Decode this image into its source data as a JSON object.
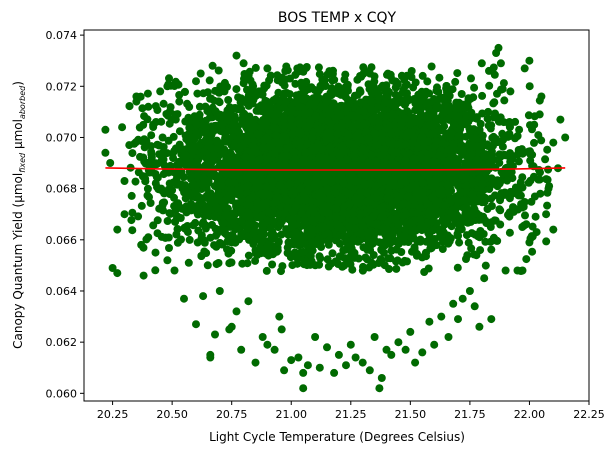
{
  "chart_data": {
    "type": "scatter",
    "title": "BOS TEMP x CQY",
    "xlabel": "Light Cycle Temperature (Degrees Celsius)",
    "ylabel": {
      "main": "Canopy Quantum Yield (µmol",
      "sub1": "fixed",
      "mid": " µmol",
      "sub2": "aborbed",
      "end": ")"
    },
    "xlim": [
      20.13,
      22.25
    ],
    "ylim": [
      0.0597,
      0.0742
    ],
    "x_ticks": [
      20.25,
      20.5,
      20.75,
      21.0,
      21.25,
      21.5,
      21.75,
      22.0,
      22.25
    ],
    "x_tick_labels": [
      "20.25",
      "20.50",
      "20.75",
      "21.00",
      "21.25",
      "21.50",
      "21.75",
      "22.00",
      "22.25"
    ],
    "y_ticks": [
      0.06,
      0.062,
      0.064,
      0.066,
      0.068,
      0.07,
      0.072,
      0.074
    ],
    "y_tick_labels": [
      "0.060",
      "0.062",
      "0.064",
      "0.066",
      "0.068",
      "0.070",
      "0.072",
      "0.074"
    ],
    "grid": false,
    "legend": "none",
    "colors": {
      "points": "#006a00",
      "fit_line": "#ff0000"
    },
    "series": [
      {
        "kind": "scatter",
        "points": [
          [
            20.22,
            0.0703
          ],
          [
            20.22,
            0.0694
          ],
          [
            20.24,
            0.069
          ],
          [
            20.25,
            0.0649
          ],
          [
            20.27,
            0.0647
          ],
          [
            20.27,
            0.0664
          ],
          [
            20.29,
            0.0704
          ],
          [
            20.3,
            0.0683
          ],
          [
            20.3,
            0.067
          ],
          [
            20.32,
            0.0697
          ],
          [
            20.35,
            0.0716
          ],
          [
            20.35,
            0.0714
          ],
          [
            20.37,
            0.0658
          ],
          [
            20.38,
            0.0646
          ],
          [
            20.4,
            0.0712
          ],
          [
            20.4,
            0.0661
          ],
          [
            20.42,
            0.0705
          ],
          [
            20.43,
            0.0655
          ],
          [
            20.45,
            0.0718
          ],
          [
            20.46,
            0.07
          ],
          [
            20.48,
            0.072
          ],
          [
            20.48,
            0.0652
          ],
          [
            20.51,
            0.0648
          ],
          [
            20.53,
            0.0714
          ],
          [
            20.55,
            0.0637
          ],
          [
            20.57,
            0.0651
          ],
          [
            20.58,
            0.07
          ],
          [
            20.6,
            0.0722
          ],
          [
            20.6,
            0.0627
          ],
          [
            20.62,
            0.0725
          ],
          [
            20.63,
            0.0638
          ],
          [
            20.66,
            0.0615
          ],
          [
            20.66,
            0.0614
          ],
          [
            20.67,
            0.0728
          ],
          [
            20.68,
            0.0623
          ],
          [
            20.7,
            0.064
          ],
          [
            20.72,
            0.0718
          ],
          [
            20.74,
            0.0625
          ],
          [
            20.75,
            0.0626
          ],
          [
            20.77,
            0.0732
          ],
          [
            20.77,
            0.0632
          ],
          [
            20.79,
            0.0617
          ],
          [
            20.8,
            0.0729
          ],
          [
            20.82,
            0.0636
          ],
          [
            20.84,
            0.072
          ],
          [
            20.85,
            0.0612
          ],
          [
            20.88,
            0.0622
          ],
          [
            20.9,
            0.0619
          ],
          [
            20.9,
            0.0727
          ],
          [
            20.93,
            0.0617
          ],
          [
            20.95,
            0.063
          ],
          [
            20.96,
            0.0625
          ],
          [
            20.97,
            0.0609
          ],
          [
            20.98,
            0.0727
          ],
          [
            21.0,
            0.0613
          ],
          [
            21.03,
            0.0614
          ],
          [
            21.05,
            0.0608
          ],
          [
            21.05,
            0.0602
          ],
          [
            21.07,
            0.0611
          ],
          [
            21.1,
            0.0622
          ],
          [
            21.12,
            0.061
          ],
          [
            21.15,
            0.0618
          ],
          [
            21.18,
            0.0608
          ],
          [
            21.2,
            0.0615
          ],
          [
            21.23,
            0.0611
          ],
          [
            21.25,
            0.0619
          ],
          [
            21.27,
            0.0614
          ],
          [
            21.3,
            0.0612
          ],
          [
            21.33,
            0.0609
          ],
          [
            21.35,
            0.0622
          ],
          [
            21.37,
            0.0602
          ],
          [
            21.38,
            0.0606
          ],
          [
            21.4,
            0.0617
          ],
          [
            21.42,
            0.0615
          ],
          [
            21.45,
            0.062
          ],
          [
            21.48,
            0.0617
          ],
          [
            21.5,
            0.0624
          ],
          [
            21.52,
            0.0612
          ],
          [
            21.55,
            0.0616
          ],
          [
            21.58,
            0.0628
          ],
          [
            21.6,
            0.0619
          ],
          [
            21.63,
            0.063
          ],
          [
            21.66,
            0.0622
          ],
          [
            21.68,
            0.0635
          ],
          [
            21.7,
            0.0629
          ],
          [
            21.72,
            0.0637
          ],
          [
            21.75,
            0.064
          ],
          [
            21.77,
            0.0634
          ],
          [
            21.79,
            0.0626
          ],
          [
            21.8,
            0.0729
          ],
          [
            21.81,
            0.0645
          ],
          [
            21.83,
            0.0726
          ],
          [
            21.84,
            0.0629
          ],
          [
            21.86,
            0.0733
          ],
          [
            21.87,
            0.0735
          ],
          [
            21.88,
            0.0729
          ],
          [
            21.9,
            0.0648
          ],
          [
            21.92,
            0.0718
          ],
          [
            21.95,
            0.0648
          ],
          [
            21.97,
            0.0665
          ],
          [
            21.98,
            0.0727
          ],
          [
            22.0,
            0.073
          ],
          [
            22.0,
            0.0659
          ],
          [
            22.02,
            0.0705
          ],
          [
            22.03,
            0.0663
          ],
          [
            22.05,
            0.0716
          ],
          [
            22.07,
            0.067
          ],
          [
            22.08,
            0.068
          ],
          [
            22.1,
            0.0698
          ],
          [
            22.1,
            0.0664
          ],
          [
            22.12,
            0.0688
          ],
          [
            22.13,
            0.0707
          ],
          [
            22.15,
            0.07
          ]
        ],
        "cloud": {
          "count": 7000,
          "x_mean": 21.2,
          "x_sd": 0.34,
          "y_mean": 0.06875,
          "y_sd": 0.00155
        }
      },
      {
        "kind": "line",
        "x": [
          20.22,
          20.45,
          20.7,
          20.95,
          21.2,
          21.45,
          21.7,
          21.95,
          22.15
        ],
        "y": [
          0.06881,
          0.06877,
          0.06874,
          0.06873,
          0.06873,
          0.06873,
          0.06874,
          0.06877,
          0.06881
        ]
      }
    ]
  }
}
